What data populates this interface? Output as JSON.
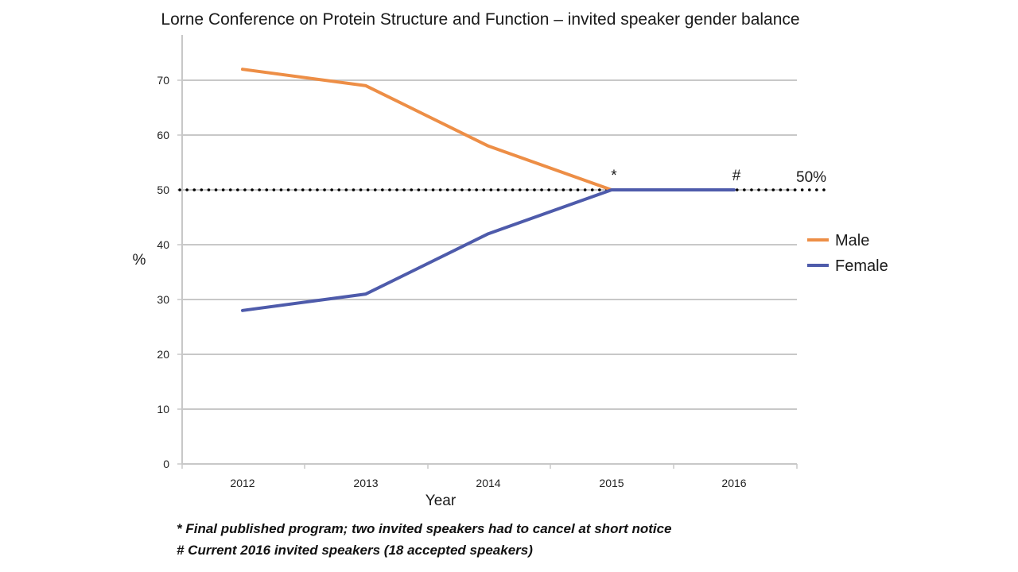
{
  "chart_data": {
    "type": "line",
    "title": "Lorne Conference on Protein Structure and Function – invited speaker gender balance",
    "xlabel": "Year",
    "ylabel": "%",
    "categories": [
      "2012",
      "2013",
      "2014",
      "2015",
      "2016"
    ],
    "yticks": [
      "0",
      "10",
      "20",
      "30",
      "40",
      "50",
      "60",
      "70"
    ],
    "ylim": [
      0,
      80
    ],
    "grid": true,
    "legend_position": "right",
    "series": [
      {
        "name": "Male",
        "values": [
          72,
          69,
          58,
          50,
          50
        ],
        "color": "#ed8e46",
        "until_index": 3
      },
      {
        "name": "Female",
        "values": [
          28,
          31,
          42,
          50,
          50
        ],
        "color": "#4e5bab",
        "until_index": 4
      }
    ],
    "reference_line": {
      "value": 50,
      "label": "50%",
      "style": "dotted",
      "color": "#000000"
    },
    "annotations": [
      {
        "text": "*",
        "x": "2015",
        "y": 50
      },
      {
        "text": "#",
        "x": "2016",
        "y": 50
      }
    ],
    "footnotes": [
      "* Final published program; two invited speakers had to cancel at short notice",
      "# Current 2016 invited speakers (18 accepted speakers)"
    ]
  }
}
